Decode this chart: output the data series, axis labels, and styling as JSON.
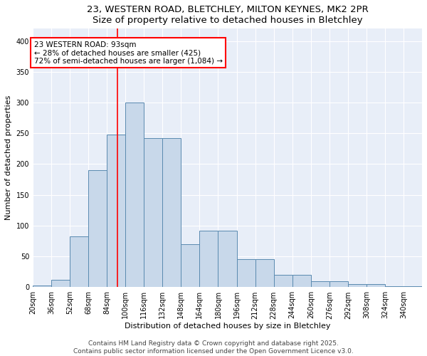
{
  "title_line1": "23, WESTERN ROAD, BLETCHLEY, MILTON KEYNES, MK2 2PR",
  "title_line2": "Size of property relative to detached houses in Bletchley",
  "xlabel": "Distribution of detached houses by size in Bletchley",
  "ylabel": "Number of detached properties",
  "footer": "Contains HM Land Registry data © Crown copyright and database right 2025.\nContains public sector information licensed under the Open Government Licence v3.0.",
  "categories": [
    "20sqm",
    "36sqm",
    "52sqm",
    "68sqm",
    "84sqm",
    "100sqm",
    "116sqm",
    "132sqm",
    "148sqm",
    "164sqm",
    "180sqm",
    "196sqm",
    "212sqm",
    "228sqm",
    "244sqm",
    "260sqm",
    "276sqm",
    "292sqm",
    "308sqm",
    "324sqm",
    "340sqm"
  ],
  "bar_heights": [
    3,
    12,
    83,
    190,
    248,
    300,
    242,
    242,
    70,
    92,
    92,
    45,
    45,
    20,
    20,
    9,
    9,
    5,
    5,
    1,
    1
  ],
  "bar_color_fill": "#c8d8ea",
  "bar_color_edge": "#5a8ab0",
  "annotation_text": "23 WESTERN ROAD: 93sqm\n← 28% of detached houses are smaller (425)\n72% of semi-detached houses are larger (1,084) →",
  "annotation_box_color": "white",
  "annotation_box_edge": "red",
  "vline_x": 93,
  "vline_color": "red",
  "ylim": [
    0,
    420
  ],
  "yticks": [
    0,
    50,
    100,
    150,
    200,
    250,
    300,
    350,
    400
  ],
  "bg_color": "#e8eef8",
  "grid_color": "white",
  "title_fontsize": 9.5,
  "axis_label_fontsize": 8,
  "tick_fontsize": 7,
  "footer_fontsize": 6.5,
  "annotation_fontsize": 7.5
}
